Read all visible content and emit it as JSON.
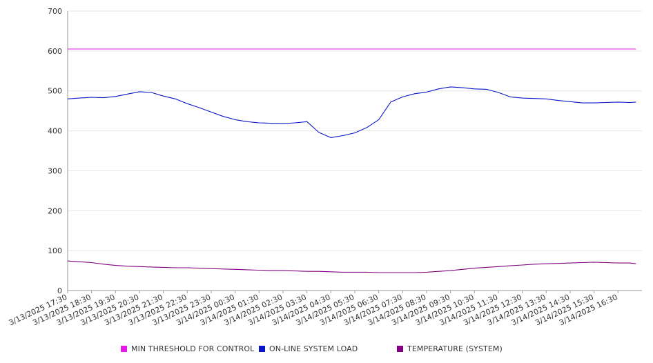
{
  "colors": {
    "grid": "#e6e6e6",
    "axis": "#999999",
    "text": "#333333",
    "background": "#ffffff"
  },
  "chart_data": {
    "type": "line",
    "title": "",
    "xlabel": "",
    "ylabel": "",
    "ylim": [
      0,
      700
    ],
    "yticks": [
      "0",
      "100",
      "200",
      "300",
      "400",
      "500",
      "600",
      "700"
    ],
    "grid": true,
    "legend_position": "bottom",
    "categories": [
      "3/13/2025 17:30",
      "3/13/2025 18:30",
      "3/13/2025 19:30",
      "3/13/2025 20:30",
      "3/13/2025 21:30",
      "3/13/2025 22:30",
      "3/13/2025 23:30",
      "3/14/2025 00:30",
      "3/14/2025 01:30",
      "3/14/2025 02:30",
      "3/14/2025 03:30",
      "3/14/2025 04:30",
      "3/14/2025 05:30",
      "3/14/2025 06:30",
      "3/14/2025 07:30",
      "3/14/2025 08:30",
      "3/14/2025 09:30",
      "3/14/2025 10:30",
      "3/14/2025 11:30",
      "3/14/2025 12:30",
      "3/14/2025 13:30",
      "3/14/2025 14:30",
      "3/14/2025 15:30",
      "3/14/2025 16:30"
    ],
    "x": [
      "3/13/2025 17:30",
      "3/13/2025 18:00",
      "3/13/2025 18:30",
      "3/13/2025 19:00",
      "3/13/2025 19:30",
      "3/13/2025 20:00",
      "3/13/2025 20:30",
      "3/13/2025 21:00",
      "3/13/2025 21:30",
      "3/13/2025 22:00",
      "3/13/2025 22:30",
      "3/13/2025 23:00",
      "3/13/2025 23:30",
      "3/14/2025 00:00",
      "3/14/2025 00:30",
      "3/14/2025 01:00",
      "3/14/2025 01:30",
      "3/14/2025 02:00",
      "3/14/2025 02:30",
      "3/14/2025 03:00",
      "3/14/2025 03:30",
      "3/14/2025 04:00",
      "3/14/2025 04:30",
      "3/14/2025 05:00",
      "3/14/2025 05:30",
      "3/14/2025 06:00",
      "3/14/2025 06:30",
      "3/14/2025 07:00",
      "3/14/2025 07:30",
      "3/14/2025 08:00",
      "3/14/2025 08:30",
      "3/14/2025 09:00",
      "3/14/2025 09:30",
      "3/14/2025 10:00",
      "3/14/2025 10:30",
      "3/14/2025 11:00",
      "3/14/2025 11:30",
      "3/14/2025 12:00",
      "3/14/2025 12:30",
      "3/14/2025 13:00",
      "3/14/2025 13:30",
      "3/14/2025 14:00",
      "3/14/2025 14:30",
      "3/14/2025 15:00",
      "3/14/2025 15:30",
      "3/14/2025 16:00",
      "3/14/2025 16:30",
      "3/14/2025 17:00",
      "3/14/2025 17:15"
    ],
    "series": [
      {
        "name": "MIN THRESHOLD FOR CONTROL",
        "color": "#e619e6",
        "values": [
          605,
          605,
          605,
          605,
          605,
          605,
          605,
          605,
          605,
          605,
          605,
          605,
          605,
          605,
          605,
          605,
          605,
          605,
          605,
          605,
          605,
          605,
          605,
          605,
          605,
          605,
          605,
          605,
          605,
          605,
          605,
          605,
          605,
          605,
          605,
          605,
          605,
          605,
          605,
          605,
          605,
          605,
          605,
          605,
          605,
          605,
          605,
          605,
          605
        ]
      },
      {
        "name": "ON-LINE SYSTEM LOAD",
        "color": "#0a14c8",
        "values": [
          480,
          482,
          484,
          483,
          486,
          492,
          498,
          496,
          487,
          480,
          468,
          458,
          447,
          436,
          428,
          423,
          420,
          419,
          418,
          420,
          423,
          396,
          383,
          388,
          395,
          408,
          428,
          472,
          485,
          493,
          497,
          505,
          510,
          508,
          505,
          504,
          496,
          485,
          482,
          481,
          480,
          476,
          473,
          470,
          470,
          471,
          472,
          471,
          472
        ]
      },
      {
        "name": "TEMPERATURE (SYSTEM)",
        "color": "#800080",
        "values": [
          74,
          72,
          70,
          66,
          63,
          61,
          60,
          59,
          58,
          57,
          57,
          56,
          55,
          54,
          53,
          52,
          51,
          50,
          50,
          49,
          48,
          48,
          47,
          46,
          46,
          46,
          45,
          45,
          45,
          45,
          46,
          48,
          50,
          53,
          56,
          58,
          60,
          62,
          64,
          66,
          67,
          68,
          69,
          70,
          71,
          70,
          69,
          69,
          67
        ]
      }
    ]
  }
}
